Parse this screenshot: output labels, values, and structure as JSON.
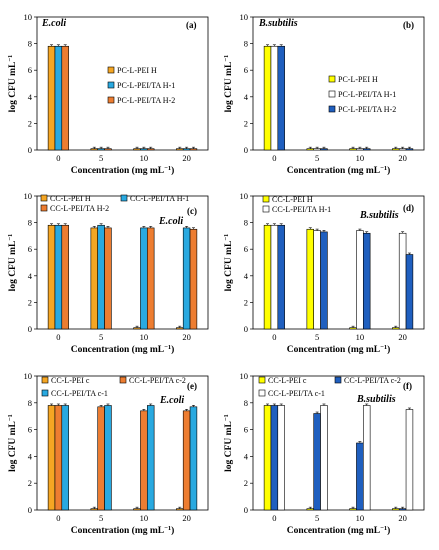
{
  "chart_data": [
    {
      "type": "bar",
      "panel_label": "(a)",
      "title": "E.coli",
      "xlabel": "Concentration (mg mL−1)",
      "ylabel": "log CFU mL−1",
      "categories": [
        "0",
        "5",
        "10",
        "20"
      ],
      "ylim": [
        0,
        10
      ],
      "yticks": [
        0,
        2,
        4,
        6,
        8,
        10
      ],
      "legend_position": "center-right",
      "series": [
        {
          "name": "PC-L-PEI H",
          "color": "#f5a623",
          "values": [
            7.8,
            0.1,
            0.1,
            0.1
          ]
        },
        {
          "name": "PC-L-PEI/TA H-1",
          "color": "#29a9e0",
          "values": [
            7.8,
            0.1,
            0.1,
            0.1
          ]
        },
        {
          "name": "PC-L-PEI/TA H-2",
          "color": "#ed7d31",
          "values": [
            7.8,
            0.1,
            0.1,
            0.1
          ]
        }
      ]
    },
    {
      "type": "bar",
      "panel_label": "(b)",
      "title": "B.subtilis",
      "xlabel": "Concentration (mg mL−1)",
      "ylabel": "log CFU mL−1",
      "categories": [
        "0",
        "5",
        "10",
        "20"
      ],
      "ylim": [
        0,
        10
      ],
      "yticks": [
        0,
        2,
        4,
        6,
        8,
        10
      ],
      "legend_position": "center-right",
      "series": [
        {
          "name": "PC-L-PEI H",
          "color": "#ffff00",
          "values": [
            7.8,
            0.1,
            0.1,
            0.1
          ]
        },
        {
          "name": "PC-L-PEI/TA H-1",
          "color": "#ffffff",
          "values": [
            7.8,
            0.1,
            0.1,
            0.1
          ]
        },
        {
          "name": "PC-L-PEI/TA H-2",
          "color": "#1f5fbf",
          "values": [
            7.8,
            0.1,
            0.1,
            0.1
          ]
        }
      ]
    },
    {
      "type": "bar",
      "panel_label": "(c)",
      "title": "E.coli",
      "xlabel": "Concentration (mg mL−1)",
      "ylabel": "log CFU mL−1",
      "categories": [
        "0",
        "5",
        "10",
        "20"
      ],
      "ylim": [
        0,
        10
      ],
      "yticks": [
        0,
        2,
        4,
        6,
        8,
        10
      ],
      "legend_position": "top",
      "series": [
        {
          "name": "CC-L-PEI H",
          "color": "#f5a623",
          "values": [
            7.8,
            7.6,
            0.1,
            0.1
          ]
        },
        {
          "name": "CC-L-PEI/TA H-1",
          "color": "#29a9e0",
          "values": [
            7.8,
            7.8,
            7.6,
            7.6
          ]
        },
        {
          "name": "CC-L-PEI/TA H-2",
          "color": "#ed7d31",
          "values": [
            7.8,
            7.6,
            7.6,
            7.5
          ]
        }
      ]
    },
    {
      "type": "bar",
      "panel_label": "(d)",
      "title": "B.subtilis",
      "xlabel": "Concentration (mg mL−1)",
      "ylabel": "log CFU mL−1",
      "categories": [
        "0",
        "5",
        "10",
        "20"
      ],
      "ylim": [
        0,
        10
      ],
      "yticks": [
        0,
        2,
        4,
        6,
        8,
        10
      ],
      "legend_position": "top",
      "series": [
        {
          "name": "CC-L-PEI H",
          "color": "#ffff00",
          "values": [
            7.8,
            7.5,
            0.1,
            0.1
          ]
        },
        {
          "name": "CC-L-PEI/TA H-1",
          "color": "#ffffff",
          "values": [
            7.8,
            7.4,
            7.4,
            7.2
          ]
        },
        {
          "name": "",
          "color": "#1f5fbf",
          "values": [
            7.8,
            7.3,
            7.2,
            5.6
          ]
        }
      ]
    },
    {
      "type": "bar",
      "panel_label": "(e)",
      "title": "E.coli",
      "xlabel": "Concentration (mg mL−1)",
      "ylabel": "log CFU mL−1",
      "categories": [
        "0",
        "5",
        "10",
        "20"
      ],
      "ylim": [
        0,
        10
      ],
      "yticks": [
        0,
        2,
        4,
        6,
        8,
        10
      ],
      "legend_position": "top",
      "series": [
        {
          "name": "CC-L-PEI c",
          "color": "#f5a623",
          "values": [
            7.8,
            0.1,
            0.1,
            0.1
          ]
        },
        {
          "name": "CC-L-PEI/TA c-2",
          "color": "#ed7d31",
          "values": [
            7.8,
            7.7,
            7.4,
            7.4
          ]
        },
        {
          "name": "CC-L-PEI/TA c-1",
          "color": "#29a9e0",
          "values": [
            7.8,
            7.8,
            7.8,
            7.7
          ]
        }
      ]
    },
    {
      "type": "bar",
      "panel_label": "(f)",
      "title": "B.subtilis",
      "xlabel": "Concentration (mg mL−1)",
      "ylabel": "log CFU mL−1",
      "categories": [
        "0",
        "5",
        "10",
        "20"
      ],
      "ylim": [
        0,
        10
      ],
      "yticks": [
        0,
        2,
        4,
        6,
        8,
        10
      ],
      "legend_position": "top",
      "series": [
        {
          "name": "CC-L-PEI c",
          "color": "#ffff00",
          "values": [
            7.8,
            0.1,
            0.1,
            0.1
          ]
        },
        {
          "name": "CC-L-PEI/TA c-2",
          "color": "#1f5fbf",
          "values": [
            7.8,
            7.2,
            5.0,
            0.1
          ]
        },
        {
          "name": "CC-L-PEI/TA c-1",
          "color": "#ffffff",
          "values": [
            7.8,
            7.8,
            7.8,
            7.5
          ]
        }
      ]
    }
  ]
}
